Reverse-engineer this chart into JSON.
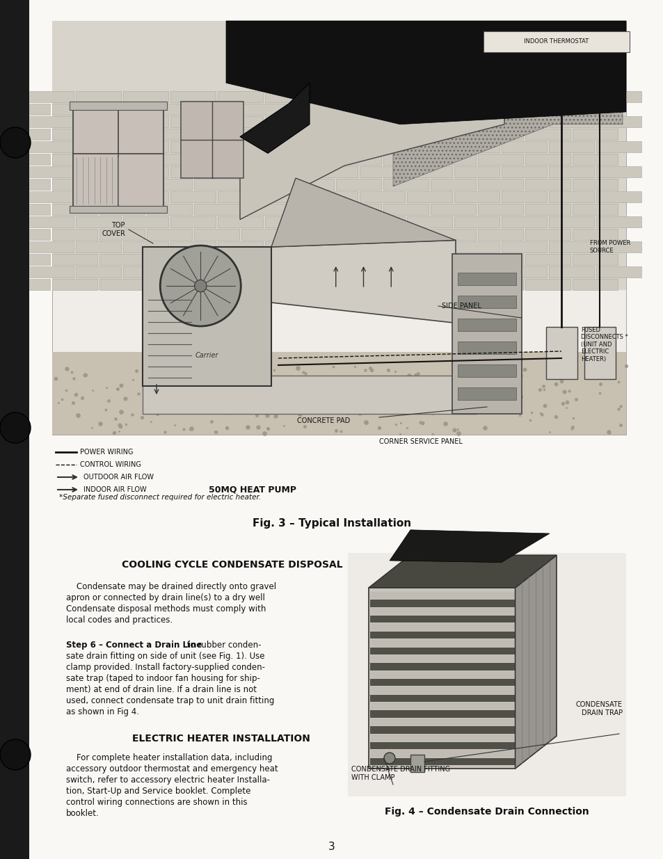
{
  "page_bg": "#f5f2ee",
  "white": "#ffffff",
  "text_color": "#111111",
  "page_width": 9.54,
  "page_height": 12.35,
  "fig3_caption": "Fig. 3 – Typical Installation",
  "fig4_caption": "Fig. 4 – Condensate Drain Connection",
  "footnote": "*Separate fused disconnect required for electric heater.",
  "section1_title": "COOLING CYCLE CONDENSATE DISPOSAL",
  "section1_body_line1": "    Condensate may be drained directly onto gravel",
  "section1_body_line2": "apron or connected by drain line(s) to a dry well",
  "section1_body_line3": "Condensate disposal methods must comply with",
  "section1_body_line4": "local codes and practices.",
  "step6_bold": "Step 6 – Connect a Drain Line",
  "step6_rest_lines": [
    " to rubber conden-",
    "sate drain fitting on side of unit (see Fig. 1). Use",
    "clamp provided. Install factory-supplied conden-",
    "sate trap (taped to indoor fan housing for ship-",
    "ment) at end of drain line. If a drain line is not",
    "used, connect condensate trap to unit drain fitting",
    "as shown in Fig 4."
  ],
  "section2_title": "ELECTRIC HEATER INSTALLATION",
  "section2_body_lines": [
    "    For complete heater installation data, including",
    "accessory outdoor thermostat and emergency heat",
    "switch, refer to accessory electric heater Installa-",
    "tion, Start-Up and Service booklet. Complete",
    "control wiring connections are shown in this",
    "booklet."
  ],
  "page_number": "3",
  "label_power_wiring": "POWER WIRING",
  "label_control_wiring": "CONTROL WIRING",
  "label_outdoor_air": "OUTDOOR AIR FLOW",
  "label_indoor_air": "INDOOR AIR FLOW",
  "label_heat_pump": "50MQ HEAT PUMP",
  "label_side_panel": "SIDE PANEL",
  "label_concrete_pad": "CONCRETE PAD",
  "label_corner_service": "CORNER SERVICE PANEL",
  "label_top_cover": "TOP\nCOVER",
  "label_from_power": "FROM POWER\nSOURCE",
  "label_fused": "FUSED\nDISCONNECTS *\n(UNIT AND\nELECTRIC\nHEATER)",
  "label_indoor_thermo": "INDOOR THERMOSTAT",
  "label_cond_fitting": "CONDENSATE DRAIN FITTING\nWITH CLAMP",
  "label_cond_trap": "CONDENSATE\nDRAIN TRAP"
}
